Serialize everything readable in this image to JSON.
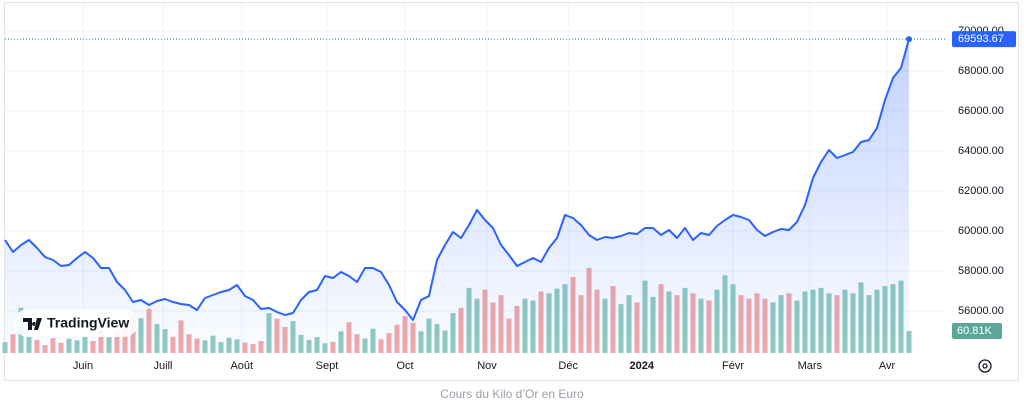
{
  "chart_data": {
    "type": "line",
    "brand": "TradingView",
    "caption": "Cours du Kilo d’Or en Euro",
    "ylim": [
      53900,
      71400
    ],
    "yticks": [
      {
        "value": 56000,
        "label": "56000.00"
      },
      {
        "value": 58000,
        "label": "58000.00"
      },
      {
        "value": 60000,
        "label": "60000.00"
      },
      {
        "value": 62000,
        "label": "62000.00"
      },
      {
        "value": 64000,
        "label": "64000.00"
      },
      {
        "value": 66000,
        "label": "66000.00"
      },
      {
        "value": 68000,
        "label": "68000.00"
      },
      {
        "value": 70000,
        "label": "70000.00"
      }
    ],
    "y2lim": [
      0,
      967000
    ],
    "xlim": [
      0,
      117.5
    ],
    "xticks": [
      {
        "value": 9.75,
        "label": "Juin"
      },
      {
        "value": 19.75,
        "label": "Juill"
      },
      {
        "value": 29.6,
        "label": "Août"
      },
      {
        "value": 40.25,
        "label": "Sept"
      },
      {
        "value": 50,
        "label": "Oct"
      },
      {
        "value": 60.25,
        "label": "Nov"
      },
      {
        "value": 70.4,
        "label": "Déc"
      },
      {
        "value": 79.6,
        "label": "2024"
      },
      {
        "value": 91,
        "label": "Févr"
      },
      {
        "value": 100.6,
        "label": "Mars"
      },
      {
        "value": 110.25,
        "label": "Avr"
      }
    ],
    "grid": true,
    "series": [
      {
        "color": "#2962ff",
        "values": [
          59550,
          58950,
          59300,
          59550,
          59150,
          58700,
          58550,
          58250,
          58300,
          58650,
          58950,
          58650,
          58150,
          58150,
          57450,
          57050,
          56450,
          56550,
          56300,
          56500,
          56600,
          56450,
          56350,
          56300,
          56050,
          56650,
          56800,
          56950,
          57050,
          57300,
          56750,
          56550,
          56100,
          56150,
          55950,
          55800,
          55900,
          56550,
          56950,
          57050,
          57750,
          57650,
          57950,
          57750,
          57450,
          58150,
          58150,
          57950,
          57300,
          56450,
          56050,
          55550,
          56550,
          56750,
          58550,
          59300,
          59950,
          59650,
          60300,
          61050,
          60550,
          60150,
          59300,
          58800,
          58250,
          58450,
          58650,
          58450,
          59150,
          59650,
          60800,
          60650,
          60300,
          59800,
          59550,
          59700,
          59650,
          59750,
          59900,
          59850,
          60150,
          60150,
          59800,
          60050,
          59650,
          60150,
          59550,
          59900,
          59800,
          60250,
          60550,
          60800,
          60700,
          60550,
          60050,
          59750,
          59950,
          60100,
          60050,
          60450,
          61300,
          62650,
          63450,
          64050,
          63650,
          63800,
          63950,
          64450,
          64550,
          65150,
          66550,
          67650,
          68150,
          69593.67
        ]
      },
      {
        "axis": "y2",
        "up_color": "#8fcbc0",
        "down_color": "#f2a8a8",
        "last_color": "#5aa79a",
        "values": [
          30000,
          52000,
          125000,
          48000,
          36000,
          22000,
          41000,
          28000,
          39000,
          35000,
          47000,
          33000,
          61000,
          44000,
          58000,
          70000,
          105000,
          96000,
          122000,
          80000,
          66000,
          45000,
          90000,
          52000,
          40000,
          35000,
          48000,
          30000,
          42000,
          38000,
          29000,
          25000,
          33000,
          110000,
          95000,
          72000,
          88000,
          50000,
          36000,
          44000,
          27000,
          31000,
          60000,
          85000,
          52000,
          40000,
          67000,
          38000,
          55000,
          78000,
          102000,
          84000,
          60000,
          95000,
          80000,
          62000,
          110000,
          125000,
          180000,
          150000,
          175000,
          140000,
          160000,
          95000,
          130000,
          150000,
          145000,
          170000,
          165000,
          178000,
          190000,
          210000,
          160000,
          235000,
          175000,
          150000,
          185000,
          135000,
          160000,
          140000,
          200000,
          155000,
          190000,
          170000,
          160000,
          180000,
          165000,
          150000,
          145000,
          175000,
          215000,
          190000,
          160000,
          150000,
          165000,
          150000,
          140000,
          160000,
          165000,
          145000,
          170000,
          175000,
          180000,
          165000,
          160000,
          175000,
          165000,
          195000,
          160000,
          175000,
          185000,
          190000,
          200000,
          60810
        ],
        "value_labels": [
          null,
          null,
          null,
          null,
          null,
          null,
          null,
          null,
          null,
          null,
          null,
          null,
          null,
          null,
          null,
          null,
          null,
          null,
          null,
          null,
          null,
          null,
          null,
          null,
          null,
          null,
          null,
          null,
          null,
          null,
          null,
          null,
          null,
          null,
          null,
          null,
          null,
          null,
          null,
          null,
          null,
          null,
          null,
          null,
          null,
          null,
          null,
          null,
          null,
          null,
          null,
          null,
          null,
          null,
          null,
          null,
          null,
          null,
          null,
          null,
          null,
          null,
          null,
          null,
          null,
          null,
          null,
          null,
          null,
          null,
          null,
          null,
          null,
          null,
          null,
          null,
          null,
          null,
          null,
          null,
          null,
          null,
          null,
          null,
          null,
          null,
          null,
          null,
          null,
          null,
          null,
          null,
          null,
          null,
          null,
          null,
          null,
          null,
          null,
          null,
          null,
          null,
          null,
          null,
          null,
          null,
          null,
          null,
          null,
          null,
          null,
          null,
          null,
          "60.81K"
        ]
      }
    ]
  }
}
